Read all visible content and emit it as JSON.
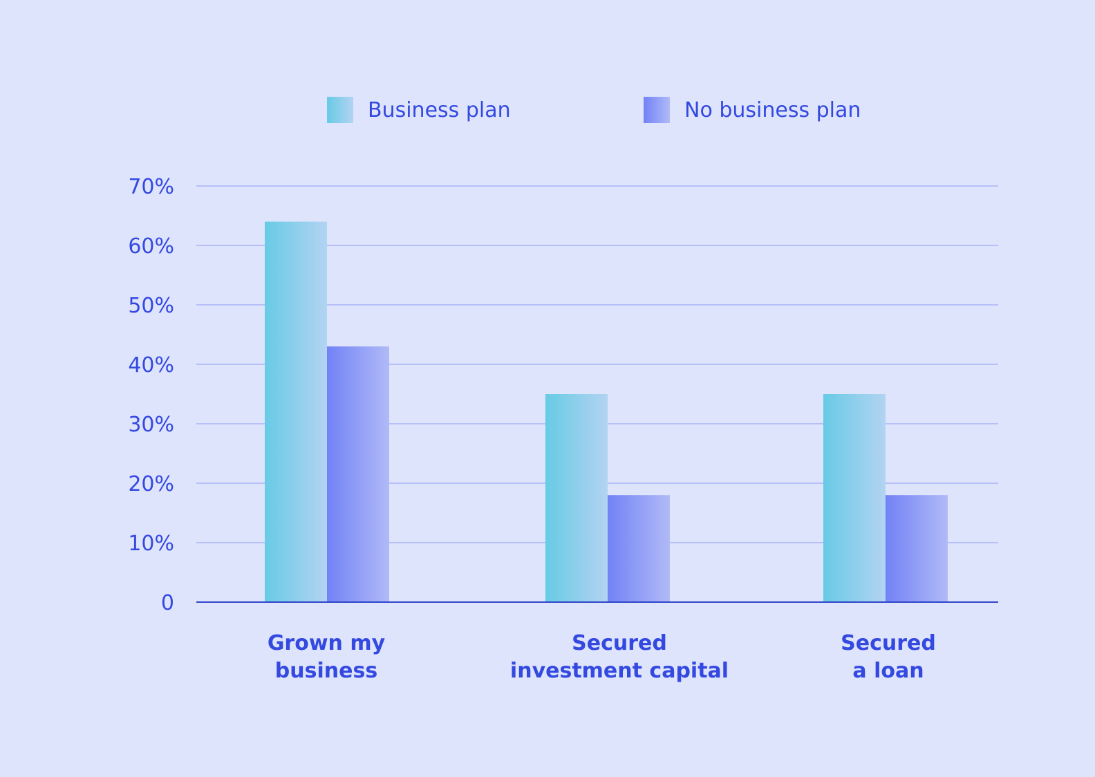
{
  "chart_data": {
    "type": "bar",
    "categories": [
      [
        "Grown my",
        "business"
      ],
      [
        "Secured",
        "investment capital"
      ],
      [
        "Secured",
        "a loan"
      ]
    ],
    "series": [
      {
        "name": "Business plan",
        "values": [
          64,
          35,
          35
        ]
      },
      {
        "name": "No business plan",
        "values": [
          43,
          18,
          18
        ]
      }
    ],
    "y_ticks": [
      "0",
      "10%",
      "20%",
      "30%",
      "40%",
      "50%",
      "60%",
      "70%"
    ],
    "ylim": [
      0,
      70
    ],
    "grid": true,
    "legend_position": "top",
    "colors": {
      "background": "#dfe4fd",
      "text": "#3349e0",
      "grid": "#a9b3f6",
      "axis": "#3046c8",
      "business_plan_start": "#67cbe5",
      "business_plan_end": "#b3d3f2",
      "no_business_plan_start": "#7282f6",
      "no_business_plan_end": "#b0baf7"
    }
  }
}
